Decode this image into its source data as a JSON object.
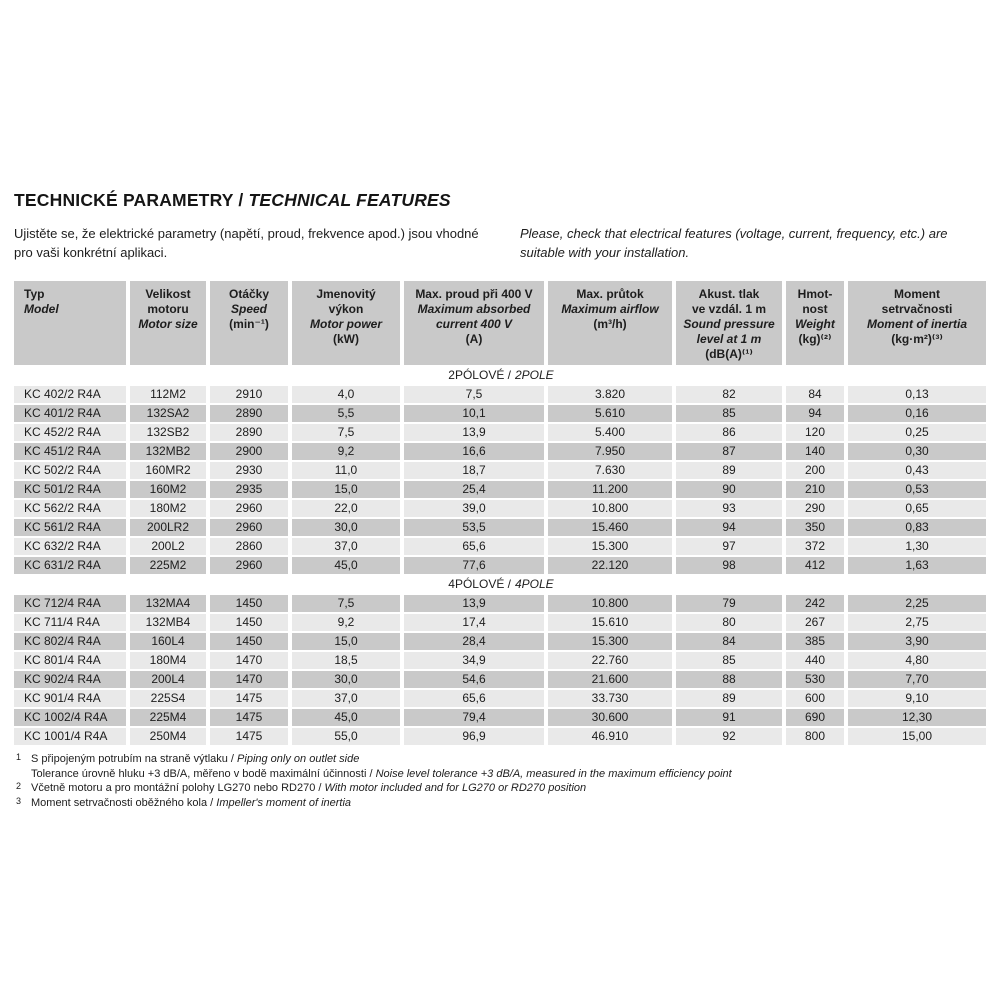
{
  "header": {
    "title_cz": "TECHNICKÉ PARAMETRY /",
    "title_en": "TECHNICAL FEATURES",
    "intro_cz": "Ujistěte se, že elektrické parametry (napětí, proud, frekvence apod.) jsou vhodné pro vaši konkrétní aplikaci.",
    "intro_en": "Please, check that electrical features (voltage, current, frequency, etc.) are suitable with your installation."
  },
  "colors": {
    "row_light": "#e9e9e9",
    "row_dark": "#c9c9c9",
    "header_bg": "#c9c9c9",
    "text": "#1d1d1d"
  },
  "table": {
    "header_cols": [
      {
        "name": "model",
        "lines": [
          {
            "t": "Typ",
            "s": "cz"
          },
          {
            "t": "Model",
            "s": "en"
          }
        ]
      },
      {
        "name": "motor-size",
        "lines": [
          {
            "t": "Velikost",
            "s": "cz"
          },
          {
            "t": "motoru",
            "s": "cz"
          },
          {
            "t": "Motor size",
            "s": "en"
          }
        ]
      },
      {
        "name": "speed",
        "lines": [
          {
            "t": "Otáčky",
            "s": "cz"
          },
          {
            "t": "Speed",
            "s": "en"
          },
          {
            "t": "(min⁻¹)",
            "s": "unit"
          }
        ]
      },
      {
        "name": "motor-power",
        "lines": [
          {
            "t": "Jmenovitý",
            "s": "cz"
          },
          {
            "t": "výkon",
            "s": "cz"
          },
          {
            "t": "Motor power",
            "s": "en"
          },
          {
            "t": "(kW)",
            "s": "unit"
          }
        ]
      },
      {
        "name": "max-current",
        "lines": [
          {
            "t": "Max. proud při 400 V",
            "s": "cz"
          },
          {
            "t": "Maximum absorbed",
            "s": "en"
          },
          {
            "t": "current 400 V",
            "s": "en"
          },
          {
            "t": "(A)",
            "s": "unit"
          }
        ]
      },
      {
        "name": "max-airflow",
        "lines": [
          {
            "t": "Max. průtok",
            "s": "cz"
          },
          {
            "t": "Maximum airflow",
            "s": "en"
          },
          {
            "t": "(m³/h)",
            "s": "unit"
          }
        ]
      },
      {
        "name": "sound-pressure",
        "lines": [
          {
            "t": "Akust. tlak",
            "s": "cz"
          },
          {
            "t": "ve vzdál. 1 m",
            "s": "cz"
          },
          {
            "t": "Sound pressure",
            "s": "en"
          },
          {
            "t": "level at 1 m",
            "s": "en"
          },
          {
            "t": "(dB(A)⁽¹⁾",
            "s": "unit"
          }
        ]
      },
      {
        "name": "weight",
        "lines": [
          {
            "t": "Hmot-",
            "s": "cz"
          },
          {
            "t": "nost",
            "s": "cz"
          },
          {
            "t": "Weight",
            "s": "en"
          },
          {
            "t": "(kg)⁽²⁾",
            "s": "unit"
          }
        ]
      },
      {
        "name": "moment-of-inertia",
        "lines": [
          {
            "t": "Moment",
            "s": "cz"
          },
          {
            "t": "setrvačnosti",
            "s": "cz"
          },
          {
            "t": "Moment of inertia",
            "s": "en"
          },
          {
            "t": "(kg·m²)⁽³⁾",
            "s": "unit"
          }
        ]
      }
    ],
    "sections": [
      {
        "label_cz": "2PÓLOVÉ /",
        "label_en": "2POLE",
        "first_row_shade": "light",
        "rows": [
          [
            "KC 402/2 R4A",
            "112M2",
            "2910",
            "4,0",
            "7,5",
            "3.820",
            "82",
            "84",
            "0,13"
          ],
          [
            "KC 401/2 R4A",
            "132SA2",
            "2890",
            "5,5",
            "10,1",
            "5.610",
            "85",
            "94",
            "0,16"
          ],
          [
            "KC 452/2 R4A",
            "132SB2",
            "2890",
            "7,5",
            "13,9",
            "5.400",
            "86",
            "120",
            "0,25"
          ],
          [
            "KC 451/2 R4A",
            "132MB2",
            "2900",
            "9,2",
            "16,6",
            "7.950",
            "87",
            "140",
            "0,30"
          ],
          [
            "KC 502/2 R4A",
            "160MR2",
            "2930",
            "11,0",
            "18,7",
            "7.630",
            "89",
            "200",
            "0,43"
          ],
          [
            "KC 501/2 R4A",
            "160M2",
            "2935",
            "15,0",
            "25,4",
            "11.200",
            "90",
            "210",
            "0,53"
          ],
          [
            "KC 562/2 R4A",
            "180M2",
            "2960",
            "22,0",
            "39,0",
            "10.800",
            "93",
            "290",
            "0,65"
          ],
          [
            "KC 561/2 R4A",
            "200LR2",
            "2960",
            "30,0",
            "53,5",
            "15.460",
            "94",
            "350",
            "0,83"
          ],
          [
            "KC 632/2 R4A",
            "200L2",
            "2860",
            "37,0",
            "65,6",
            "15.300",
            "97",
            "372",
            "1,30"
          ],
          [
            "KC 631/2 R4A",
            "225M2",
            "2960",
            "45,0",
            "77,6",
            "22.120",
            "98",
            "412",
            "1,63"
          ]
        ]
      },
      {
        "label_cz": "4PÓLOVÉ /",
        "label_en": "4POLE",
        "first_row_shade": "dark",
        "rows": [
          [
            "KC 712/4 R4A",
            "132MA4",
            "1450",
            "7,5",
            "13,9",
            "10.800",
            "79",
            "242",
            "2,25"
          ],
          [
            "KC 711/4 R4A",
            "132MB4",
            "1450",
            "9,2",
            "17,4",
            "15.610",
            "80",
            "267",
            "2,75"
          ],
          [
            "KC 802/4 R4A",
            "160L4",
            "1450",
            "15,0",
            "28,4",
            "15.300",
            "84",
            "385",
            "3,90"
          ],
          [
            "KC 801/4 R4A",
            "180M4",
            "1470",
            "18,5",
            "34,9",
            "22.760",
            "85",
            "440",
            "4,80"
          ],
          [
            "KC 902/4 R4A",
            "200L4",
            "1470",
            "30,0",
            "54,6",
            "21.600",
            "88",
            "530",
            "7,70"
          ],
          [
            "KC 901/4 R4A",
            "225S4",
            "1475",
            "37,0",
            "65,6",
            "33.730",
            "89",
            "600",
            "9,10"
          ],
          [
            "KC 1002/4 R4A",
            "225M4",
            "1475",
            "45,0",
            "79,4",
            "30.600",
            "91",
            "690",
            "12,30"
          ],
          [
            "KC 1001/4 R4A",
            "250M4",
            "1475",
            "55,0",
            "96,9",
            "46.910",
            "92",
            "800",
            "15,00"
          ]
        ]
      }
    ]
  },
  "footnotes": [
    {
      "marker": "1",
      "lines": [
        {
          "cz": "S připojeným potrubím na straně výtlaku /",
          "en": "Piping only on outlet side"
        },
        {
          "cz": "Tolerance úrovně hluku +3 dB/A, měřeno v bodě maximální účinnosti /",
          "en": "Noise level tolerance +3 dB/A, measured in the maximum efficiency point"
        }
      ]
    },
    {
      "marker": "2",
      "lines": [
        {
          "cz": "Včetně motoru a pro montážní polohy LG270 nebo RD270 /",
          "en": "With motor included and for LG270 or RD270 position"
        }
      ]
    },
    {
      "marker": "3",
      "lines": [
        {
          "cz": "Moment setrvačnosti oběžného kola /",
          "en": "Impeller's moment of inertia"
        }
      ]
    }
  ]
}
